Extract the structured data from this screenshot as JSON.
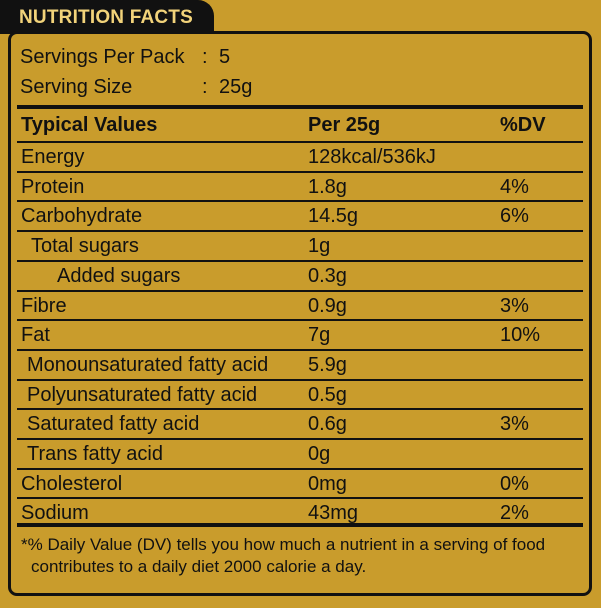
{
  "title": "NUTRITION FACTS",
  "servings_per_pack": {
    "label": "Servings Per Pack",
    "colon": ":",
    "value": "5"
  },
  "serving_size": {
    "label": "Serving Size",
    "colon": ":",
    "value": "25g"
  },
  "table": {
    "headers": {
      "name": "Typical Values",
      "per": "Per 25g",
      "dv": "%DV"
    },
    "rows": [
      {
        "name": "Energy",
        "per": "128kcal/536kJ",
        "dv": ""
      },
      {
        "name": "Protein",
        "per": "1.8g",
        "dv": "4%"
      },
      {
        "name": "Carbohydrate",
        "per": "14.5g",
        "dv": "6%"
      },
      {
        "name": "Total sugars",
        "per": "1g",
        "dv": ""
      },
      {
        "name": "Added sugars",
        "per": "0.3g",
        "dv": ""
      },
      {
        "name": "Fibre",
        "per": "0.9g",
        "dv": "3%"
      },
      {
        "name": "Fat",
        "per": "7g",
        "dv": "10%"
      },
      {
        "name": "Monounsaturated fatty acid",
        "per": "5.9g",
        "dv": ""
      },
      {
        "name": "Polyunsaturated fatty acid",
        "per": "0.5g",
        "dv": ""
      },
      {
        "name": "Saturated fatty acid",
        "per": "0.6g",
        "dv": "3%"
      },
      {
        "name": "Trans fatty acid",
        "per": "0g",
        "dv": ""
      },
      {
        "name": "Cholesterol",
        "per": "0mg",
        "dv": "0%"
      },
      {
        "name": "Sodium",
        "per": "43mg",
        "dv": "2%"
      }
    ]
  },
  "footnote": {
    "line1": "*% Daily Value (DV) tells you how much a nutrient in a serving of food",
    "line2": "contributes to a daily diet 2000 calorie a day."
  },
  "colors": {
    "background": "#c99c2c",
    "ink": "#111111",
    "title_text": "#f2d37a"
  }
}
